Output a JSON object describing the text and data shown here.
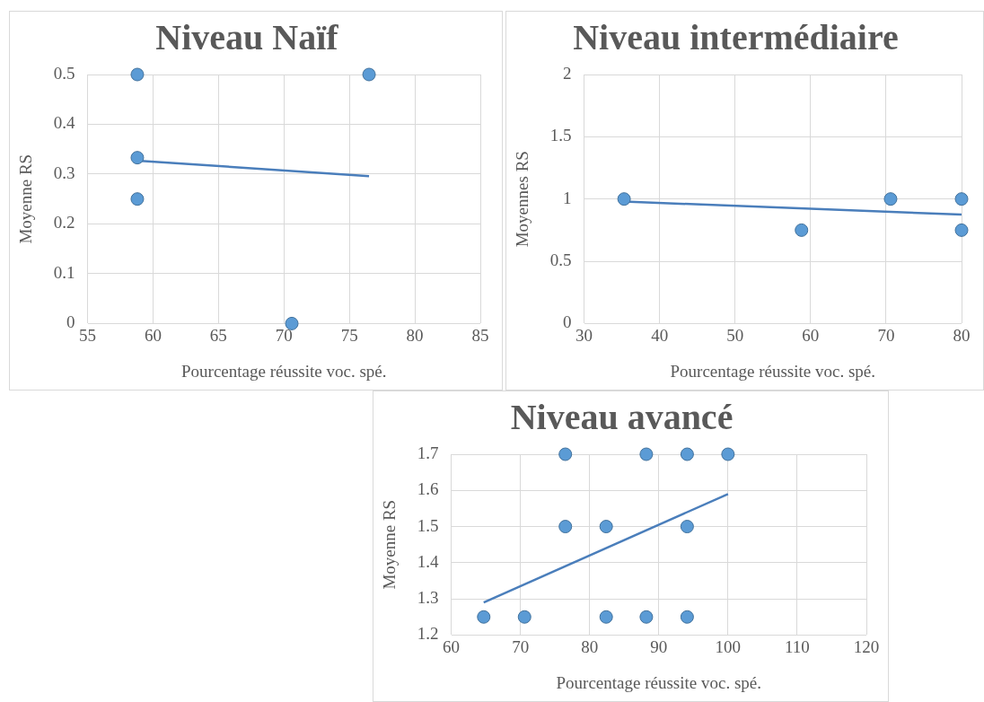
{
  "chart_data": [
    {
      "type": "scatter",
      "title": "Niveau Naïf",
      "xlabel": "Pourcentage réussite voc. spé.",
      "ylabel": "Moyenne RS",
      "xlim": [
        55,
        85
      ],
      "xticks": [
        55,
        60,
        65,
        70,
        75,
        80,
        85
      ],
      "ylim": [
        0,
        0.5
      ],
      "yticks": [
        0,
        0.1,
        0.2,
        0.3,
        0.4,
        0.5
      ],
      "grid": true,
      "legend": false,
      "series": [
        {
          "marker": "circle",
          "color": "#5b9bd5",
          "x": [
            58.8,
            58.8,
            58.8,
            70.6,
            76.5
          ],
          "values": [
            0.5,
            0.333,
            0.25,
            0,
            0.5
          ]
        },
        {
          "type": "line",
          "marker": "none",
          "color": "#4a7ebb",
          "x": [
            58.8,
            76.5
          ],
          "values": [
            0.327,
            0.296
          ]
        }
      ]
    },
    {
      "type": "scatter",
      "title": "Niveau intermédiaire",
      "xlabel": "Pourcentage réussite voc. spé.",
      "ylabel": "Moyennes RS",
      "xlim": [
        30,
        80
      ],
      "xticks": [
        30,
        40,
        50,
        60,
        70,
        80
      ],
      "ylim": [
        0,
        2
      ],
      "yticks": [
        0,
        0.5,
        1,
        1.5,
        2
      ],
      "grid": true,
      "legend": false,
      "series": [
        {
          "marker": "circle",
          "color": "#5b9bd5",
          "x": [
            35.3,
            58.8,
            70.6,
            80,
            80
          ],
          "values": [
            1,
            0.75,
            1,
            1,
            0.75
          ]
        },
        {
          "type": "line",
          "marker": "none",
          "color": "#4a7ebb",
          "x": [
            35.3,
            80
          ],
          "values": [
            0.98,
            0.875
          ]
        }
      ]
    },
    {
      "type": "scatter",
      "title": "Niveau avancé",
      "xlabel": "Pourcentage réussite voc. spé.",
      "ylabel": "Moyenne RS",
      "xlim": [
        60,
        120
      ],
      "xticks": [
        60,
        70,
        80,
        90,
        100,
        110,
        120
      ],
      "ylim": [
        1.2,
        1.7
      ],
      "yticks": [
        1.2,
        1.3,
        1.4,
        1.5,
        1.6,
        1.7
      ],
      "grid": true,
      "legend": false,
      "series": [
        {
          "marker": "circle",
          "color": "#5b9bd5",
          "x": [
            76.5,
            88.2,
            94.1,
            100,
            76.5,
            82.4,
            94.1,
            64.7,
            70.6,
            82.4,
            88.2,
            94.1
          ],
          "values": [
            1.7,
            1.7,
            1.7,
            1.7,
            1.5,
            1.5,
            1.5,
            1.25,
            1.25,
            1.25,
            1.25,
            1.25
          ]
        },
        {
          "type": "line",
          "marker": "none",
          "color": "#4a7ebb",
          "x": [
            64.7,
            100
          ],
          "values": [
            1.29,
            1.59
          ]
        }
      ]
    }
  ]
}
